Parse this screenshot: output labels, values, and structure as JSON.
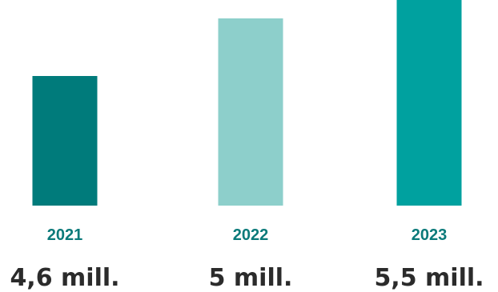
{
  "chart_data": {
    "type": "bar",
    "categories": [
      "2021",
      "2022",
      "2023"
    ],
    "values": [
      4.6,
      5.0,
      5.5
    ],
    "value_labels": [
      "4,6 mill.",
      "5 mill.",
      "5,5 mill."
    ],
    "colors": [
      "#007b7b",
      "#8dcfcb",
      "#00a19f"
    ],
    "title": "",
    "xlabel": "",
    "ylabel": "",
    "grid": false,
    "legend": "none"
  }
}
